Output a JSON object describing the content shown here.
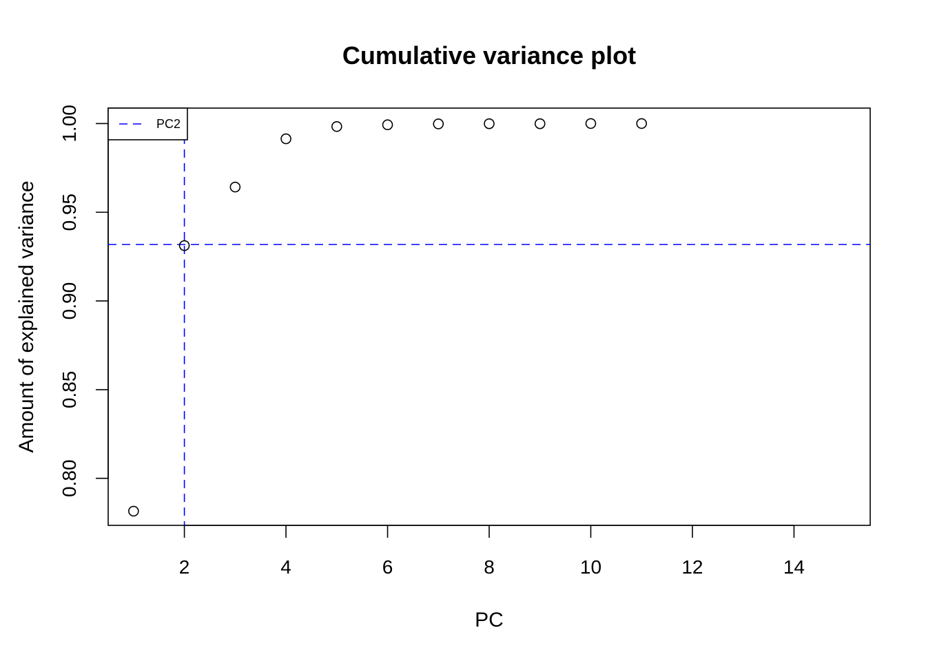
{
  "chart_data": {
    "type": "scatter",
    "title": "Cumulative variance plot",
    "xlabel": "PC",
    "ylabel": "Amount of explained variance",
    "xlim": [
      0.5,
      15.5
    ],
    "ylim": [
      0.7735,
      1.0087
    ],
    "x_ticks": [
      2,
      4,
      6,
      8,
      10,
      12,
      14
    ],
    "x_tick_labels": [
      "2",
      "4",
      "6",
      "8",
      "10",
      "12",
      "14"
    ],
    "y_ticks": [
      0.8,
      0.85,
      0.9,
      0.95,
      1.0
    ],
    "y_tick_labels": [
      "0.80",
      "0.85",
      "0.90",
      "0.95",
      "1.00"
    ],
    "series": [
      {
        "x": [
          1,
          2,
          3,
          4,
          5,
          6,
          7,
          8,
          9,
          10,
          11
        ],
        "y": [
          0.7815,
          0.9312,
          0.9642,
          0.9914,
          0.9983,
          0.9993,
          0.9998,
          0.9999,
          0.9999,
          1.0,
          1.0
        ]
      }
    ],
    "reference_lines": {
      "vertical_x": 2,
      "horizontal_y": 0.9318,
      "color": "#0000ff",
      "style": "dashed"
    },
    "legend": {
      "position": "top-left",
      "entries": [
        {
          "label": "PC2",
          "color": "#0000ff",
          "style": "dashed"
        }
      ]
    },
    "grid": false
  }
}
